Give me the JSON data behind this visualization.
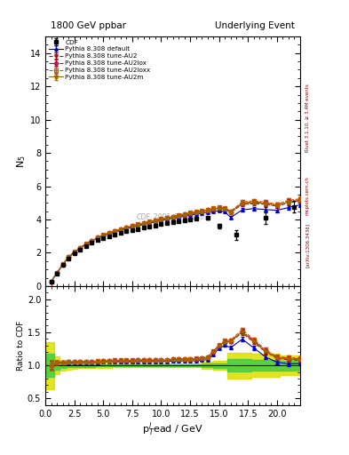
{
  "title_left": "1800 GeV ppbar",
  "title_right": "Underlying Event",
  "ylabel_main": "N$_5$",
  "ylabel_ratio": "Ratio to CDF",
  "xlabel": "p$_{T}^{l}$ead / GeV",
  "rivet_label": "Rivet 3.1.10, ≥ 3.4M events",
  "arxiv_label": "[arXiv:1306.3436]",
  "mcplots_label": "mcplots.cern.ch",
  "watermark": "CDF_2001_S4751469",
  "xlim": [
    0,
    22
  ],
  "ylim_main": [
    0,
    15
  ],
  "ylim_ratio": [
    0.4,
    2.2
  ],
  "yticks_main": [
    0,
    2,
    4,
    6,
    8,
    10,
    12,
    14
  ],
  "yticks_ratio": [
    0.5,
    1.0,
    1.5,
    2.0
  ],
  "cdf_x": [
    0.5,
    1.0,
    1.5,
    2.0,
    2.5,
    3.0,
    3.5,
    4.0,
    4.5,
    5.0,
    5.5,
    6.0,
    6.5,
    7.0,
    7.5,
    8.0,
    8.5,
    9.0,
    9.5,
    10.0,
    10.5,
    11.0,
    11.5,
    12.0,
    12.5,
    13.0,
    14.0,
    15.0,
    16.5,
    19.0,
    21.5
  ],
  "cdf_y": [
    0.28,
    0.75,
    1.25,
    1.65,
    1.95,
    2.18,
    2.4,
    2.6,
    2.75,
    2.88,
    2.98,
    3.08,
    3.18,
    3.28,
    3.35,
    3.42,
    3.5,
    3.58,
    3.65,
    3.72,
    3.78,
    3.82,
    3.88,
    3.93,
    4.0,
    4.05,
    4.08,
    3.6,
    3.08,
    4.08,
    4.75
  ],
  "cdf_yerr": [
    0.05,
    0.05,
    0.05,
    0.05,
    0.05,
    0.05,
    0.05,
    0.05,
    0.05,
    0.05,
    0.05,
    0.05,
    0.05,
    0.05,
    0.05,
    0.05,
    0.05,
    0.05,
    0.05,
    0.05,
    0.05,
    0.05,
    0.05,
    0.05,
    0.05,
    0.05,
    0.1,
    0.12,
    0.3,
    0.35,
    0.35
  ],
  "pt_x": [
    0.5,
    1.0,
    1.5,
    2.0,
    2.5,
    3.0,
    3.5,
    4.0,
    4.5,
    5.0,
    5.5,
    6.0,
    6.5,
    7.0,
    7.5,
    8.0,
    8.5,
    9.0,
    9.5,
    10.0,
    10.5,
    11.0,
    11.5,
    12.0,
    12.5,
    13.0,
    13.5,
    14.0,
    14.5,
    15.0,
    15.5,
    16.0,
    17.0,
    18.0,
    19.0,
    20.0,
    21.0,
    22.0
  ],
  "default_y": [
    0.28,
    0.78,
    1.3,
    1.72,
    2.02,
    2.28,
    2.5,
    2.7,
    2.88,
    3.02,
    3.15,
    3.25,
    3.35,
    3.45,
    3.53,
    3.62,
    3.7,
    3.78,
    3.86,
    3.94,
    4.0,
    4.07,
    4.13,
    4.2,
    4.27,
    4.33,
    4.38,
    4.43,
    4.48,
    4.52,
    4.47,
    4.12,
    4.58,
    4.65,
    4.6,
    4.55,
    4.72,
    4.88
  ],
  "default_yerr": [
    0.02,
    0.02,
    0.02,
    0.02,
    0.02,
    0.02,
    0.02,
    0.02,
    0.02,
    0.02,
    0.02,
    0.02,
    0.02,
    0.02,
    0.02,
    0.02,
    0.02,
    0.02,
    0.02,
    0.02,
    0.02,
    0.02,
    0.02,
    0.02,
    0.02,
    0.02,
    0.02,
    0.02,
    0.05,
    0.05,
    0.05,
    0.08,
    0.1,
    0.1,
    0.12,
    0.12,
    0.15,
    0.15
  ],
  "au2_y": [
    0.28,
    0.78,
    1.3,
    1.73,
    2.05,
    2.3,
    2.52,
    2.72,
    2.9,
    3.05,
    3.18,
    3.3,
    3.4,
    3.5,
    3.58,
    3.67,
    3.75,
    3.83,
    3.91,
    3.99,
    4.07,
    4.14,
    4.2,
    4.27,
    4.35,
    4.42,
    4.48,
    4.54,
    4.6,
    4.65,
    4.62,
    4.42,
    4.9,
    4.95,
    4.92,
    4.8,
    5.0,
    5.1
  ],
  "au2_yerr": [
    0.02,
    0.02,
    0.02,
    0.02,
    0.02,
    0.02,
    0.02,
    0.02,
    0.02,
    0.02,
    0.02,
    0.02,
    0.02,
    0.02,
    0.02,
    0.02,
    0.02,
    0.02,
    0.02,
    0.02,
    0.02,
    0.02,
    0.02,
    0.02,
    0.02,
    0.02,
    0.02,
    0.02,
    0.05,
    0.05,
    0.05,
    0.08,
    0.1,
    0.1,
    0.12,
    0.12,
    0.15,
    0.15
  ],
  "au2lox_y": [
    0.28,
    0.78,
    1.3,
    1.73,
    2.05,
    2.3,
    2.53,
    2.73,
    2.91,
    3.06,
    3.19,
    3.31,
    3.41,
    3.51,
    3.6,
    3.69,
    3.77,
    3.85,
    3.93,
    4.01,
    4.09,
    4.16,
    4.23,
    4.3,
    4.37,
    4.44,
    4.5,
    4.57,
    4.63,
    4.68,
    4.65,
    4.45,
    4.98,
    5.05,
    5.0,
    4.88,
    5.1,
    5.2
  ],
  "au2lox_yerr": [
    0.02,
    0.02,
    0.02,
    0.02,
    0.02,
    0.02,
    0.02,
    0.02,
    0.02,
    0.02,
    0.02,
    0.02,
    0.02,
    0.02,
    0.02,
    0.02,
    0.02,
    0.02,
    0.02,
    0.02,
    0.02,
    0.02,
    0.02,
    0.02,
    0.02,
    0.02,
    0.02,
    0.02,
    0.05,
    0.05,
    0.05,
    0.08,
    0.1,
    0.1,
    0.12,
    0.12,
    0.15,
    0.15
  ],
  "au2loxx_y": [
    0.28,
    0.78,
    1.31,
    1.74,
    2.06,
    2.31,
    2.54,
    2.74,
    2.92,
    3.07,
    3.2,
    3.32,
    3.43,
    3.53,
    3.62,
    3.71,
    3.79,
    3.87,
    3.95,
    4.03,
    4.11,
    4.18,
    4.25,
    4.33,
    4.4,
    4.47,
    4.53,
    4.6,
    4.67,
    4.72,
    4.7,
    4.5,
    5.05,
    5.12,
    5.05,
    4.92,
    5.15,
    5.25
  ],
  "au2loxx_yerr": [
    0.02,
    0.02,
    0.02,
    0.02,
    0.02,
    0.02,
    0.02,
    0.02,
    0.02,
    0.02,
    0.02,
    0.02,
    0.02,
    0.02,
    0.02,
    0.02,
    0.02,
    0.02,
    0.02,
    0.02,
    0.02,
    0.02,
    0.02,
    0.02,
    0.02,
    0.02,
    0.02,
    0.02,
    0.05,
    0.05,
    0.05,
    0.08,
    0.1,
    0.1,
    0.12,
    0.12,
    0.15,
    0.15
  ],
  "au2m_y": [
    0.28,
    0.78,
    1.3,
    1.73,
    2.05,
    2.3,
    2.52,
    2.72,
    2.9,
    3.05,
    3.18,
    3.3,
    3.41,
    3.51,
    3.59,
    3.68,
    3.76,
    3.84,
    3.92,
    4.0,
    4.08,
    4.15,
    4.22,
    4.29,
    4.36,
    4.43,
    4.49,
    4.55,
    4.62,
    4.67,
    4.64,
    4.44,
    4.95,
    5.0,
    4.96,
    4.85,
    5.05,
    5.15
  ],
  "au2m_yerr": [
    0.02,
    0.02,
    0.02,
    0.02,
    0.02,
    0.02,
    0.02,
    0.02,
    0.02,
    0.02,
    0.02,
    0.02,
    0.02,
    0.02,
    0.02,
    0.02,
    0.02,
    0.02,
    0.02,
    0.02,
    0.02,
    0.02,
    0.02,
    0.02,
    0.02,
    0.02,
    0.02,
    0.02,
    0.05,
    0.05,
    0.05,
    0.08,
    0.1,
    0.1,
    0.12,
    0.12,
    0.15,
    0.15
  ],
  "color_default": "#0000cc",
  "color_au2": "#cc0000",
  "color_au2lox": "#bb0033",
  "color_au2loxx": "#cc5500",
  "color_au2m": "#996600",
  "color_cdf": "#000000",
  "green_color": "#44cc44",
  "yellow_color": "#dddd00",
  "band_x": [
    0.0,
    0.5,
    1.0,
    1.5,
    2.0,
    2.5,
    3.0,
    3.5,
    4.0,
    4.5,
    5.0,
    5.5,
    6.0,
    6.5,
    7.0,
    7.5,
    8.0,
    8.5,
    9.0,
    9.5,
    10.0,
    10.5,
    11.0,
    11.5,
    12.0,
    12.5,
    13.0,
    14.0,
    15.0,
    16.5,
    19.0,
    21.5
  ],
  "band_cdf_y": [
    0.28,
    0.28,
    0.75,
    1.25,
    1.65,
    1.95,
    2.18,
    2.4,
    2.6,
    2.75,
    2.88,
    2.98,
    3.08,
    3.18,
    3.28,
    3.35,
    3.42,
    3.5,
    3.58,
    3.65,
    3.72,
    3.78,
    3.82,
    3.88,
    3.93,
    4.0,
    4.05,
    4.08,
    3.6,
    3.08,
    4.08,
    4.75
  ],
  "band_cdf_err": [
    0.05,
    0.05,
    0.05,
    0.05,
    0.05,
    0.05,
    0.05,
    0.05,
    0.05,
    0.05,
    0.05,
    0.05,
    0.05,
    0.05,
    0.05,
    0.05,
    0.05,
    0.05,
    0.05,
    0.05,
    0.05,
    0.05,
    0.05,
    0.05,
    0.05,
    0.05,
    0.05,
    0.1,
    0.12,
    0.3,
    0.35,
    0.35
  ]
}
